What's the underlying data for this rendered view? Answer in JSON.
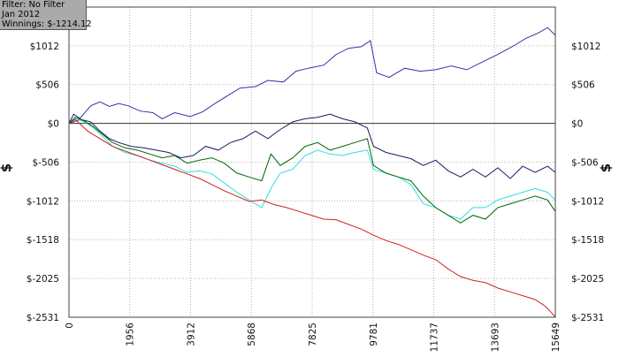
{
  "info": {
    "filter": "Filter: No Filter",
    "period": "Jan 2012",
    "winnings": "Winnings: $-1214.12"
  },
  "y_axis_symbol": "$",
  "chart_data": {
    "type": "line",
    "title": "",
    "xlabel": "",
    "ylabel": "$",
    "xlim": [
      0,
      15649
    ],
    "ylim": [
      -2531,
      1518
    ],
    "grid": true,
    "legend": "none",
    "x_ticks": [
      0,
      1956,
      3912,
      5868,
      7825,
      9781,
      11737,
      13693,
      15649
    ],
    "y_ticks": [
      1012,
      506,
      0,
      -506,
      -1012,
      -1518,
      -2025,
      -2531
    ],
    "y_tick_labels": [
      "$1012",
      "$506",
      "$0",
      "$-506",
      "$-1012",
      "$-1518",
      "$-2025",
      "$-2531"
    ],
    "series": [
      {
        "color": "#3333aa",
        "x": [
          0,
          300,
          700,
          1000,
          1300,
          1600,
          1900,
          2300,
          2700,
          3000,
          3400,
          3900,
          4300,
          4700,
          5100,
          5500,
          6000,
          6400,
          6900,
          7300,
          7700,
          8200,
          8600,
          9000,
          9400,
          9700,
          9900,
          10300,
          10800,
          11300,
          11800,
          12300,
          12800,
          13300,
          13800,
          14300,
          14700,
          15100,
          15400,
          15649
        ],
        "y": [
          0,
          40,
          230,
          280,
          220,
          260,
          230,
          160,
          140,
          60,
          140,
          90,
          150,
          260,
          360,
          460,
          480,
          560,
          540,
          680,
          720,
          760,
          900,
          980,
          1000,
          1080,
          660,
          600,
          720,
          680,
          700,
          750,
          700,
          800,
          900,
          1010,
          1110,
          1180,
          1250,
          1150
        ]
      },
      {
        "color": "#1a1a66",
        "x": [
          0,
          150,
          400,
          700,
          1000,
          1300,
          1600,
          2000,
          2400,
          2800,
          3200,
          3600,
          4000,
          4400,
          4800,
          5200,
          5600,
          6000,
          6400,
          6800,
          7200,
          7600,
          8000,
          8400,
          8800,
          9200,
          9600,
          9800,
          10200,
          10600,
          11000,
          11400,
          11800,
          12200,
          12600,
          13000,
          13400,
          13800,
          14200,
          14600,
          15000,
          15400,
          15649
        ],
        "y": [
          0,
          120,
          50,
          20,
          -100,
          -200,
          -250,
          -300,
          -320,
          -350,
          -380,
          -450,
          -420,
          -300,
          -350,
          -250,
          -200,
          -100,
          -200,
          -80,
          20,
          60,
          80,
          120,
          60,
          20,
          -60,
          -300,
          -380,
          -420,
          -460,
          -550,
          -480,
          -620,
          -700,
          -600,
          -700,
          -580,
          -720,
          -560,
          -640,
          -560,
          -640
        ]
      },
      {
        "color": "#33dddd",
        "x": [
          0,
          200,
          500,
          800,
          1100,
          1400,
          1800,
          2200,
          2600,
          3000,
          3400,
          3800,
          4200,
          4600,
          5000,
          5400,
          5800,
          6200,
          6500,
          6800,
          7200,
          7600,
          8000,
          8400,
          8800,
          9200,
          9600,
          9800,
          10200,
          10600,
          11000,
          11400,
          11800,
          12200,
          12600,
          13000,
          13400,
          13800,
          14200,
          14600,
          15000,
          15400,
          15649
        ],
        "y": [
          0,
          60,
          20,
          -60,
          -180,
          -300,
          -380,
          -420,
          -480,
          -520,
          -560,
          -640,
          -620,
          -660,
          -780,
          -900,
          -1000,
          -1100,
          -850,
          -650,
          -600,
          -420,
          -350,
          -400,
          -420,
          -380,
          -350,
          -600,
          -650,
          -700,
          -800,
          -1050,
          -1100,
          -1200,
          -1250,
          -1100,
          -1100,
          -1000,
          -950,
          -900,
          -850,
          -900,
          -1000
        ]
      },
      {
        "color": "#006600",
        "x": [
          0,
          200,
          500,
          800,
          1100,
          1400,
          1800,
          2200,
          2600,
          3000,
          3400,
          3800,
          4200,
          4600,
          5000,
          5400,
          5800,
          6200,
          6500,
          6800,
          7200,
          7600,
          8000,
          8400,
          8800,
          9200,
          9600,
          9800,
          10200,
          10600,
          11000,
          11400,
          11800,
          12200,
          12600,
          13000,
          13400,
          13800,
          14200,
          14600,
          15000,
          15400,
          15649
        ],
        "y": [
          0,
          80,
          30,
          -50,
          -150,
          -250,
          -320,
          -350,
          -400,
          -450,
          -420,
          -520,
          -480,
          -450,
          -520,
          -650,
          -700,
          -750,
          -400,
          -550,
          -450,
          -300,
          -250,
          -350,
          -300,
          -250,
          -200,
          -550,
          -650,
          -700,
          -750,
          -950,
          -1100,
          -1200,
          -1300,
          -1200,
          -1250,
          -1100,
          -1050,
          -1000,
          -950,
          -1000,
          -1150
        ]
      },
      {
        "color": "#cc2222",
        "x": [
          0,
          200,
          600,
          1000,
          1400,
          1800,
          2200,
          2600,
          3000,
          3400,
          3800,
          4200,
          4600,
          5000,
          5400,
          5800,
          6200,
          6600,
          7000,
          7400,
          7800,
          8200,
          8600,
          9000,
          9400,
          9800,
          10200,
          10600,
          11000,
          11400,
          11800,
          12200,
          12600,
          13000,
          13400,
          13800,
          14200,
          14600,
          15000,
          15300,
          15500,
          15649
        ],
        "y": [
          0,
          50,
          -100,
          -200,
          -300,
          -360,
          -420,
          -480,
          -540,
          -600,
          -660,
          -720,
          -800,
          -880,
          -950,
          -1020,
          -1000,
          -1060,
          -1100,
          -1150,
          -1200,
          -1250,
          -1260,
          -1320,
          -1380,
          -1460,
          -1530,
          -1580,
          -1650,
          -1720,
          -1780,
          -1900,
          -2000,
          -2050,
          -2080,
          -2150,
          -2200,
          -2250,
          -2300,
          -2380,
          -2460,
          -2531
        ]
      }
    ]
  }
}
